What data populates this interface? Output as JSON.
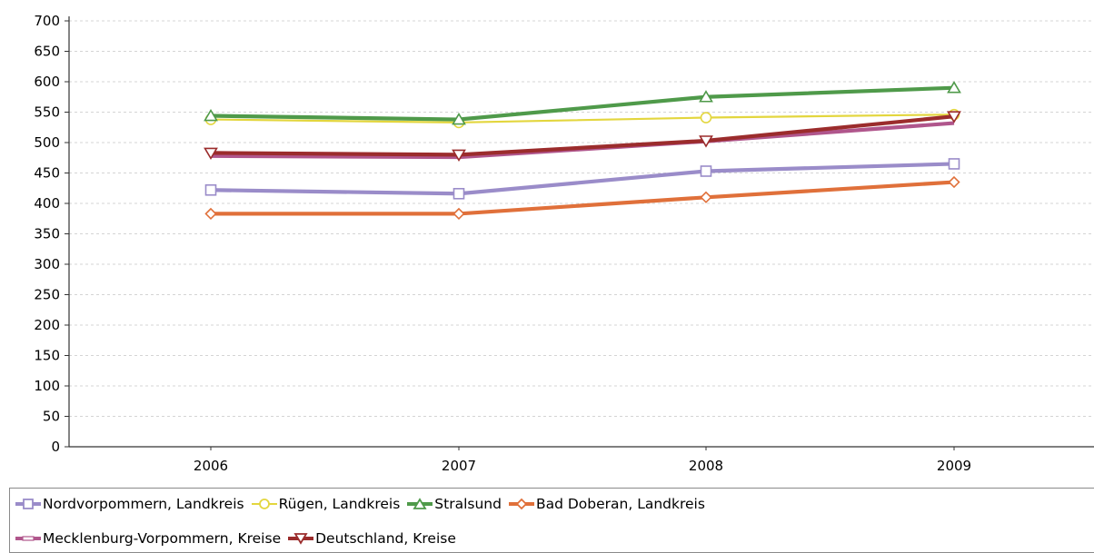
{
  "chart_data": {
    "type": "line",
    "categories": [
      "2006",
      "2007",
      "2008",
      "2009"
    ],
    "ylim": [
      0,
      700
    ],
    "yticks": [
      0,
      50,
      100,
      150,
      200,
      250,
      300,
      350,
      400,
      450,
      500,
      550,
      600,
      650,
      700
    ],
    "grid": true,
    "legend_position": "bottom",
    "series": [
      {
        "name": "Nordvorpommern, Landkreis",
        "color": "#9a8cc9",
        "marker": "square",
        "values": [
          422,
          416,
          453,
          465
        ]
      },
      {
        "name": "Rügen, Landkreis",
        "color": "#e3d63e",
        "marker": "circle",
        "values": [
          538,
          533,
          541,
          546
        ]
      },
      {
        "name": "Stralsund",
        "color": "#4f9a4a",
        "marker": "triangle-up",
        "values": [
          544,
          538,
          575,
          590
        ]
      },
      {
        "name": "Bad Doberan, Landkreis",
        "color": "#e0703a",
        "marker": "diamond",
        "values": [
          383,
          383,
          410,
          435
        ]
      },
      {
        "name": "Mecklenburg-Vorpommern, Kreise",
        "color": "#b0568c",
        "marker": "none",
        "values": [
          478,
          476,
          502,
          532
        ]
      },
      {
        "name": "Deutschland, Kreise",
        "color": "#9b2c2c",
        "marker": "triangle-down",
        "values": [
          483,
          480,
          503,
          543
        ]
      }
    ]
  }
}
